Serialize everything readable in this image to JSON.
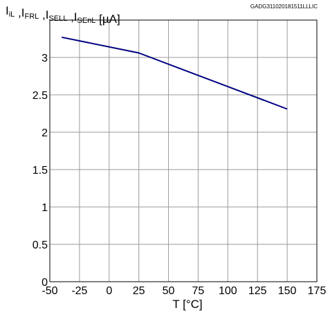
{
  "chart_data": {
    "type": "line",
    "ylabel_parts": [
      {
        "text": "I",
        "sub": "iL"
      },
      {
        "text": " ,I",
        "sub": "FRL"
      },
      {
        "text": " ,I",
        "sub": "SELL"
      },
      {
        "text": " ,I",
        "sub": "SEnL"
      },
      {
        "text": " [µA]",
        "sub": ""
      }
    ],
    "xlabel": "T [°C]",
    "reference_code": "GADG311020181511LLLIC",
    "xlim": [
      -50,
      175
    ],
    "ylim": [
      0,
      3.5
    ],
    "x_ticks": [
      -50,
      -25,
      0,
      25,
      50,
      75,
      100,
      125,
      150,
      175
    ],
    "y_ticks": [
      0,
      0.5,
      1,
      1.5,
      2,
      2.5,
      3
    ],
    "grid": true,
    "series": [
      {
        "color": "#000080",
        "x": [
          -40,
          25,
          150
        ],
        "y": [
          3.27,
          3.06,
          2.31
        ]
      }
    ]
  }
}
